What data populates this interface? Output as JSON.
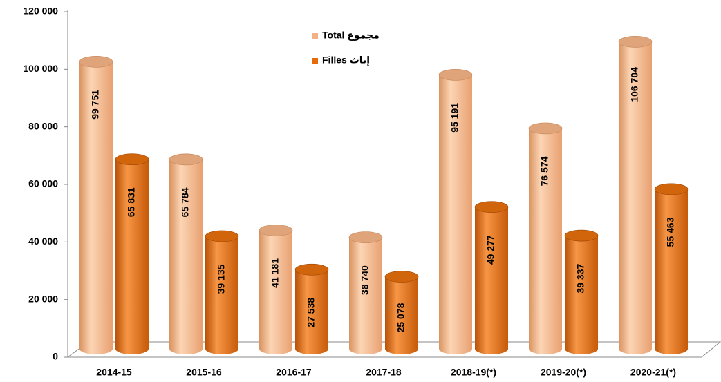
{
  "chart_data": {
    "type": "bar",
    "categories": [
      "2014-15",
      "2015-16",
      "2016-17",
      "2017-18",
      "2018-19(*)",
      "2019-20(*)",
      "2020-21(*)"
    ],
    "series": [
      {
        "name": "Total مجموع",
        "color": "#f4b183",
        "values": [
          99751,
          65784,
          41181,
          38740,
          95191,
          76574,
          106704
        ],
        "value_labels": [
          "99 751",
          "65 784",
          "41 181",
          "38 740",
          "95 191",
          "76 574",
          "106 704"
        ]
      },
      {
        "name": "Filles إناث",
        "color": "#e46c0a",
        "values": [
          65831,
          39135,
          27538,
          25078,
          49277,
          39337,
          55463
        ],
        "value_labels": [
          "65 831",
          "39 135",
          "27 538",
          "25 078",
          "49 277",
          "39 337",
          "55 463"
        ]
      }
    ],
    "ylim": [
      0,
      120000
    ],
    "yticks": [
      0,
      {
        "value": 20000,
        "label": "20 000"
      },
      {
        "value": 40000,
        "label": "40 000"
      },
      {
        "value": 60000,
        "label": "60 000"
      },
      {
        "value": 80000,
        "label": "80 000"
      },
      {
        "value": 100000,
        "label": "100 000"
      },
      {
        "value": 120000,
        "label": "120 000"
      }
    ]
  }
}
